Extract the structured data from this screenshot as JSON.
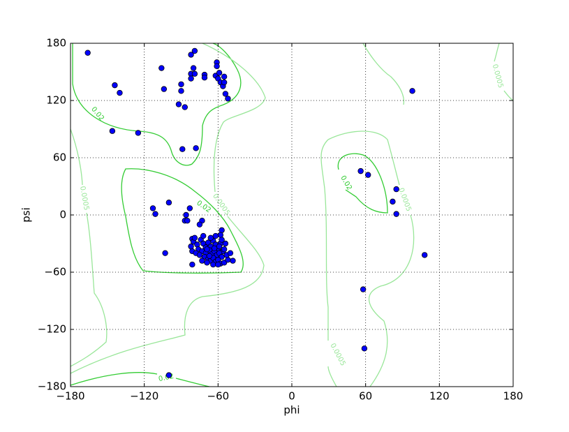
{
  "chart_data": {
    "type": "scatter",
    "xlabel": "phi",
    "ylabel": "psi",
    "xlim": [
      -180,
      180
    ],
    "ylim": [
      -180,
      180
    ],
    "xticks": [
      {
        "value": -180,
        "label": "−180"
      },
      {
        "value": -120,
        "label": "−120"
      },
      {
        "value": -60,
        "label": "−60"
      },
      0,
      60,
      120,
      180
    ],
    "yticks": [
      {
        "value": -180,
        "label": "−180"
      },
      {
        "value": -120,
        "label": "−120"
      },
      {
        "value": -60,
        "label": "−60"
      },
      0,
      60,
      120,
      180
    ],
    "grid": true,
    "color": "#0000ff",
    "contours": [
      {
        "level": 0.02,
        "color": "#33cc33"
      },
      {
        "level": 0.0005,
        "color": "#99e699"
      }
    ],
    "x": [
      -166,
      -144,
      -140,
      -146,
      -125,
      -106,
      -104,
      -90,
      -90,
      -92,
      -87,
      -89,
      -78,
      -79,
      -82,
      -80,
      -82,
      -79,
      -82,
      -71,
      -71,
      -62,
      -61,
      -61,
      -59,
      -60,
      -58,
      -56,
      -55,
      -55,
      -54,
      -52,
      56,
      62,
      85,
      82,
      85,
      98,
      108,
      58,
      59,
      -100,
      -113,
      -111,
      -100,
      -103,
      -83,
      -86,
      -87,
      -85,
      -73,
      -75,
      -57,
      -58,
      -81,
      -48,
      -81,
      -81,
      -80,
      -77,
      -74,
      -72,
      -70,
      -68,
      -66,
      -64,
      -62,
      -60,
      -58,
      -56,
      -76,
      -73,
      -70,
      -67,
      -65,
      -63,
      -61,
      -59,
      -57,
      -55,
      -71,
      -68,
      -66,
      -64,
      -62,
      -60,
      -58,
      -55,
      -52,
      -53,
      -69,
      -64,
      -60,
      -78,
      -75,
      -82,
      -79,
      -72,
      -66,
      -62,
      -57,
      -54,
      -50,
      -73,
      -67,
      -63,
      -69,
      -59
    ],
    "y": [
      170,
      136,
      128,
      88,
      86,
      154,
      132,
      137,
      130,
      116,
      113,
      69,
      70,
      172,
      168,
      154,
      148,
      148,
      143,
      147,
      144,
      146,
      160,
      156,
      149,
      143,
      139,
      135,
      145,
      139,
      127,
      122,
      46,
      42,
      27,
      14,
      1,
      130,
      -42,
      -78,
      -140,
      -168,
      7,
      1,
      13,
      -40,
      7,
      0,
      -6,
      -6,
      -6,
      -10,
      -16,
      -21,
      -52,
      -48,
      -38,
      -25,
      -28,
      -31,
      -26,
      -30,
      -34,
      -29,
      -33,
      -27,
      -31,
      -35,
      -30,
      -38,
      -36,
      -38,
      -40,
      -37,
      -41,
      -38,
      -42,
      -40,
      -44,
      -36,
      -44,
      -46,
      -48,
      -45,
      -49,
      -47,
      -51,
      -50,
      -47,
      -42,
      -50,
      -52,
      -52,
      -40,
      -42,
      -33,
      -24,
      -22,
      -24,
      -22,
      -26,
      -30,
      -40,
      -48,
      -43,
      -35,
      -36,
      -33
    ]
  }
}
